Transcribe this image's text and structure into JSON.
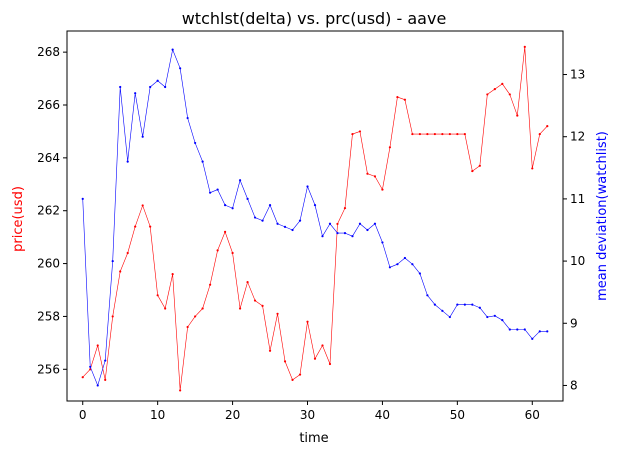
{
  "chart_data": {
    "type": "line",
    "title": "wtchlst(delta) vs. prc(usd) - aave",
    "xlabel": "time",
    "xlim": [
      -2.1,
      64.1
    ],
    "xticks": [
      0,
      10,
      20,
      30,
      40,
      50,
      60
    ],
    "left_axis": {
      "label": "price(usd)",
      "color": "#ff0000",
      "lim": [
        254.8,
        268.8
      ],
      "ticks": [
        256,
        258,
        260,
        262,
        264,
        266,
        268
      ]
    },
    "right_axis": {
      "label": "mean deviation(watchlist)",
      "color": "#0000ff",
      "lim": [
        7.75,
        13.7
      ],
      "ticks": [
        8,
        9,
        10,
        11,
        12,
        13
      ]
    },
    "series": [
      {
        "axis": "left",
        "color": "#ff0000",
        "x": [
          0,
          1,
          2,
          3,
          4,
          5,
          6,
          7,
          8,
          9,
          10,
          11,
          12,
          13,
          14,
          15,
          16,
          17,
          18,
          19,
          20,
          21,
          22,
          23,
          24,
          25,
          26,
          27,
          28,
          29,
          30,
          31,
          32,
          33,
          34,
          35,
          36,
          37,
          38,
          39,
          40,
          41,
          42,
          43,
          44,
          45,
          46,
          47,
          48,
          49,
          50,
          51,
          52,
          53,
          54,
          55,
          56,
          57,
          58,
          59,
          60,
          61,
          62
        ],
        "values": [
          255.7,
          256.0,
          256.9,
          255.6,
          258.0,
          259.7,
          260.4,
          261.4,
          262.2,
          261.4,
          258.8,
          258.3,
          259.6,
          255.2,
          257.6,
          258.0,
          258.3,
          259.2,
          260.5,
          261.2,
          260.4,
          258.3,
          259.3,
          258.6,
          258.4,
          256.7,
          258.1,
          256.3,
          255.6,
          255.8,
          257.8,
          256.4,
          256.9,
          256.2,
          261.5,
          262.1,
          264.9,
          265.0,
          263.4,
          263.3,
          262.8,
          264.4,
          266.3,
          266.2,
          264.9,
          264.9,
          264.9,
          264.9,
          264.9,
          264.9,
          264.9,
          264.9,
          263.5,
          263.7,
          266.4,
          266.6,
          266.8,
          266.4,
          265.6,
          268.2,
          263.6,
          264.9,
          265.2
        ]
      },
      {
        "axis": "right",
        "color": "#0000ff",
        "x": [
          0,
          1,
          2,
          3,
          4,
          5,
          6,
          7,
          8,
          9,
          10,
          11,
          12,
          13,
          14,
          15,
          16,
          17,
          18,
          19,
          20,
          21,
          22,
          23,
          24,
          25,
          26,
          27,
          28,
          29,
          30,
          31,
          32,
          33,
          34,
          35,
          36,
          37,
          38,
          39,
          40,
          41,
          42,
          43,
          44,
          45,
          46,
          47,
          48,
          49,
          50,
          51,
          52,
          53,
          54,
          55,
          56,
          57,
          58,
          59,
          60,
          61,
          62
        ],
        "values": [
          11.0,
          8.3,
          8.0,
          8.4,
          10.0,
          12.8,
          11.6,
          12.7,
          12.0,
          12.8,
          12.9,
          12.8,
          13.4,
          13.1,
          12.3,
          11.9,
          11.6,
          11.1,
          11.15,
          10.9,
          10.85,
          11.3,
          11.0,
          10.7,
          10.65,
          10.9,
          10.6,
          10.55,
          10.5,
          10.65,
          11.2,
          10.9,
          10.4,
          10.6,
          10.45,
          10.45,
          10.4,
          10.6,
          10.5,
          10.6,
          10.3,
          9.9,
          9.95,
          10.05,
          9.95,
          9.8,
          9.45,
          9.3,
          9.2,
          9.1,
          9.3,
          9.3,
          9.3,
          9.25,
          9.1,
          9.12,
          9.05,
          8.9,
          8.9,
          8.9,
          8.75,
          8.87,
          8.87
        ]
      }
    ]
  }
}
